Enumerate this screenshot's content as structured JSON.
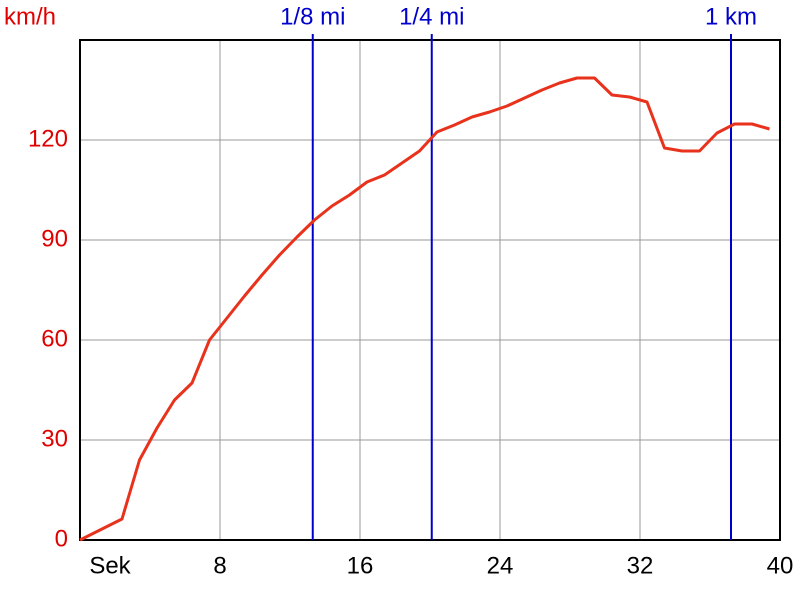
{
  "chart_data": {
    "type": "line",
    "ylabel": "km/h",
    "xlabel": "Sek",
    "x": [
      0,
      2.4,
      3.4,
      4.4,
      5.4,
      6.4,
      7.4,
      8.4,
      9.4,
      10.4,
      11.4,
      12.4,
      13.4,
      14.4,
      15.4,
      16.4,
      17.4,
      18.4,
      19.4,
      20.4,
      21.4,
      22.4,
      23.4,
      24.4,
      25.4,
      26.4,
      27.4,
      28.4,
      29.4,
      30.4,
      31.4,
      32.4,
      33.4,
      34.4,
      35.4,
      36.4,
      37.4,
      38.4,
      39.4
    ],
    "series": [
      {
        "color": "#e8321c",
        "values": [
          0,
          6.3,
          24,
          33.6,
          42,
          47.1,
          60,
          66.6,
          73.2,
          79.5,
          85.5,
          90.9,
          96,
          100.2,
          103.5,
          107.4,
          109.5,
          113.1,
          116.7,
          122.4,
          124.5,
          126.9,
          128.4,
          130.2,
          132.6,
          135,
          137.1,
          138.6,
          138.6,
          133.5,
          132.9,
          131.4,
          117.6,
          116.7,
          116.7,
          122.1,
          124.8,
          124.8,
          123.3
        ]
      }
    ],
    "xlim": [
      0,
      40
    ],
    "xticks": [
      8,
      16,
      24,
      32,
      40
    ],
    "ylim": [
      0,
      150
    ],
    "yticks": [
      0,
      30,
      60,
      90,
      120
    ],
    "grid": true,
    "axis_label_color": "#e00000",
    "grid_color": "#999999",
    "markers": [
      {
        "label": "1/8 mi",
        "x": 13.3
      },
      {
        "label": "1/4 mi",
        "x": 20.1
      },
      {
        "label": "1 km",
        "x": 37.2
      }
    ],
    "marker_color": "#0000cc"
  }
}
